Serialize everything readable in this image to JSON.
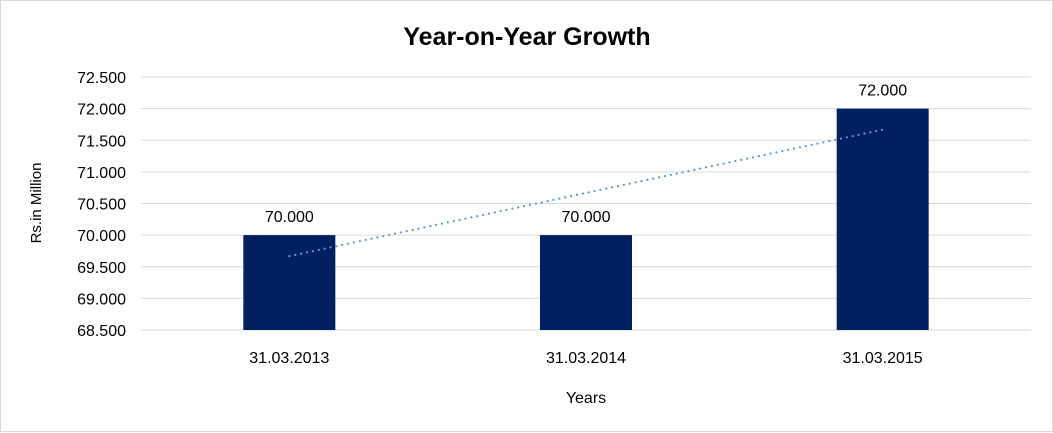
{
  "chart_data": {
    "type": "bar",
    "title": "Year-on-Year Growth",
    "xlabel": "Years",
    "ylabel": "Rs.in Million",
    "categories": [
      "31.03.2013",
      "31.03.2014",
      "31.03.2015"
    ],
    "values": [
      70.0,
      70.0,
      72.0
    ],
    "data_labels": [
      "70.000",
      "70.000",
      "72.000"
    ],
    "ylim": [
      68.5,
      72.5
    ],
    "yticks": [
      68.5,
      69.0,
      69.5,
      70.0,
      70.5,
      71.0,
      71.5,
      72.0,
      72.5
    ],
    "ytick_labels": [
      "68.500",
      "69.000",
      "69.500",
      "70.000",
      "70.500",
      "71.000",
      "71.500",
      "72.000",
      "72.500"
    ],
    "grid": true,
    "trendline": {
      "type": "linear",
      "style": "dotted",
      "start": 69.667,
      "end": 71.667
    },
    "colors": {
      "bar": "#002060",
      "trendline": "#5B9BD5",
      "grid": "#d9d9d9"
    }
  }
}
